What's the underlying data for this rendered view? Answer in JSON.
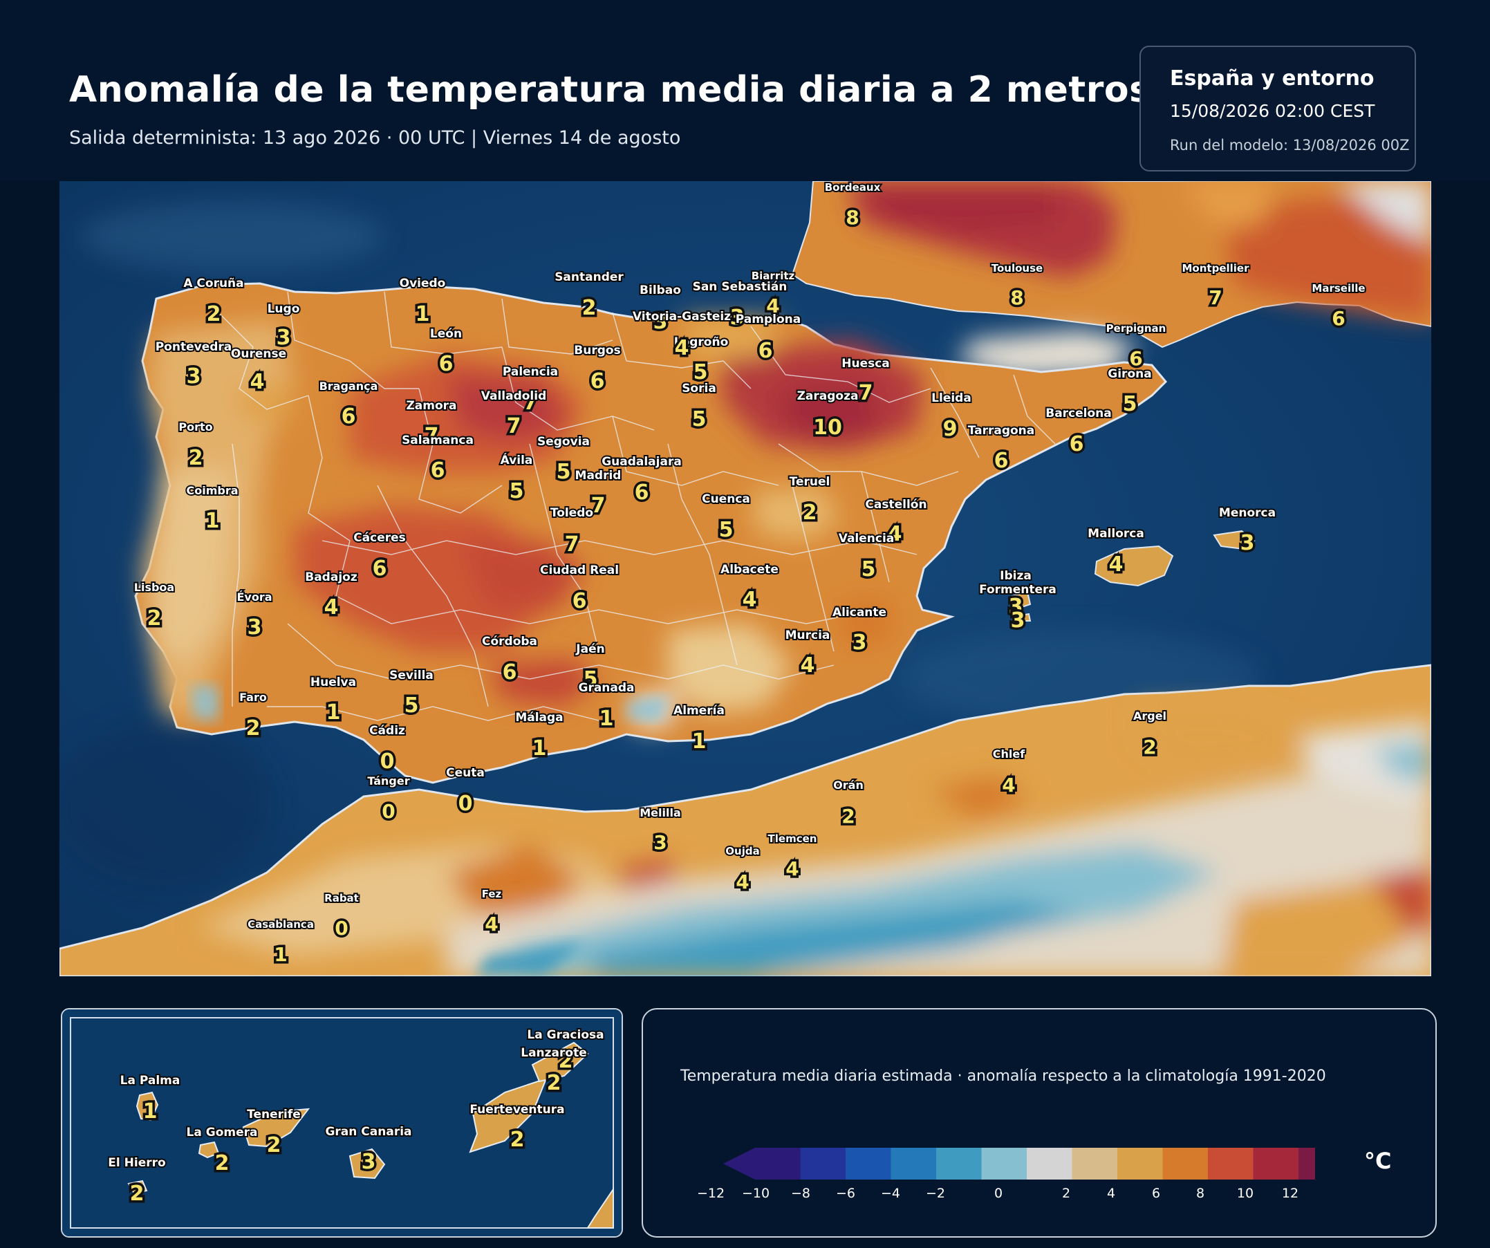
{
  "header": {
    "title": "Anomalía de la temperatura media diaria a 2 metros",
    "subtitle": "Salida determinista: 13 ago 2026 · 00 UTC  |  Viernes 14 de agosto"
  },
  "info_box": {
    "region": "España y entorno",
    "valid_time": "15/08/2026  02:00 CEST",
    "model_run": "Run del modelo: 13/08/2026 00Z"
  },
  "map": {
    "places": [
      {
        "id": "bordeaux",
        "name": "Bordeaux",
        "value": "8"
      },
      {
        "id": "toulouse",
        "name": "Toulouse",
        "value": "8"
      },
      {
        "id": "montpellier",
        "name": "Montpellier",
        "value": "7"
      },
      {
        "id": "marseille",
        "name": "Marseille",
        "value": "6"
      },
      {
        "id": "biarritz",
        "name": "Biarritz",
        "value": "4"
      },
      {
        "id": "perpignan",
        "name": "Perpignan",
        "value": "6"
      },
      {
        "id": "a-coruna",
        "name": "A Coruña",
        "value": "2"
      },
      {
        "id": "lugo",
        "name": "Lugo",
        "value": "3"
      },
      {
        "id": "oviedo",
        "name": "Oviedo",
        "value": "1"
      },
      {
        "id": "santander",
        "name": "Santander",
        "value": "2"
      },
      {
        "id": "bilbao",
        "name": "Bilbao",
        "value": "3"
      },
      {
        "id": "san-sebastian",
        "name": "San Sebastián",
        "value": "3"
      },
      {
        "id": "vitoria",
        "name": "Vitoria-Gasteiz",
        "value": ""
      },
      {
        "id": "pamplona",
        "name": "Pamplona",
        "value": "6"
      },
      {
        "id": "pontevedra",
        "name": "Pontevedra",
        "value": "3"
      },
      {
        "id": "ourense",
        "name": "Ourense",
        "value": "4"
      },
      {
        "id": "leon",
        "name": "León",
        "value": "6"
      },
      {
        "id": "logrono",
        "name": "Logroño",
        "value": "4"
      },
      {
        "id": "burgos",
        "name": "Burgos",
        "value": "6"
      },
      {
        "id": "palencia",
        "name": "Palencia",
        "value": "7"
      },
      {
        "id": "huesca",
        "name": "Huesca",
        "value": "7"
      },
      {
        "id": "soria",
        "name": "Soria",
        "value": "5"
      },
      {
        "id": "soria-b",
        "name": "",
        "value": "5"
      },
      {
        "id": "girona",
        "name": "Girona",
        "value": "5"
      },
      {
        "id": "braganca",
        "name": "Bragança",
        "value": "6"
      },
      {
        "id": "zamora",
        "name": "Zamora",
        "value": "7"
      },
      {
        "id": "valladolid",
        "name": "Valladolid",
        "value": "7"
      },
      {
        "id": "zaragoza",
        "name": "Zaragoza",
        "value": "10"
      },
      {
        "id": "lleida",
        "name": "Lleida",
        "value": "9"
      },
      {
        "id": "barcelona",
        "name": "Barcelona",
        "value": "6"
      },
      {
        "id": "tarragona",
        "name": "Tarragona",
        "value": "6"
      },
      {
        "id": "porto",
        "name": "Porto",
        "value": "2"
      },
      {
        "id": "salamanca",
        "name": "Salamanca",
        "value": "6"
      },
      {
        "id": "segovia",
        "name": "Segovia",
        "value": "5"
      },
      {
        "id": "avila",
        "name": "Ávila",
        "value": "5"
      },
      {
        "id": "guadalajara",
        "name": "Guadalajara",
        "value": "6"
      },
      {
        "id": "madrid",
        "name": "Madrid",
        "value": "7"
      },
      {
        "id": "teruel",
        "name": "Teruel",
        "value": "2"
      },
      {
        "id": "coimbra",
        "name": "Coimbra",
        "value": "1"
      },
      {
        "id": "cuenca",
        "name": "Cuenca",
        "value": "5"
      },
      {
        "id": "castellon",
        "name": "Castellón",
        "value": "4"
      },
      {
        "id": "toledo",
        "name": "Toledo",
        "value": "7"
      },
      {
        "id": "caceres",
        "name": "Cáceres",
        "value": "6"
      },
      {
        "id": "valencia",
        "name": "Valencia",
        "value": "5"
      },
      {
        "id": "mallorca",
        "name": "Mallorca",
        "value": "4"
      },
      {
        "id": "menorca",
        "name": "Menorca",
        "value": "3"
      },
      {
        "id": "badajoz",
        "name": "Badajoz",
        "value": "4"
      },
      {
        "id": "ciudad-real",
        "name": "Ciudad Real",
        "value": "6"
      },
      {
        "id": "albacete",
        "name": "Albacete",
        "value": "4"
      },
      {
        "id": "lisboa",
        "name": "Lisboa",
        "value": "2"
      },
      {
        "id": "evora",
        "name": "Évora",
        "value": "3"
      },
      {
        "id": "ibiza",
        "name": "Ibiza",
        "value": "3"
      },
      {
        "id": "formentera",
        "name": "Formentera",
        "value": "3"
      },
      {
        "id": "alicante",
        "name": "Alicante",
        "value": "3"
      },
      {
        "id": "murcia",
        "name": "Murcia",
        "value": "4"
      },
      {
        "id": "cordoba",
        "name": "Córdoba",
        "value": "6"
      },
      {
        "id": "jaen",
        "name": "Jaén",
        "value": "5"
      },
      {
        "id": "huelva",
        "name": "Huelva",
        "value": "1"
      },
      {
        "id": "sevilla",
        "name": "Sevilla",
        "value": "5"
      },
      {
        "id": "granada",
        "name": "Granada",
        "value": "1"
      },
      {
        "id": "faro",
        "name": "Faro",
        "value": "2"
      },
      {
        "id": "almeria",
        "name": "Almería",
        "value": "1"
      },
      {
        "id": "malaga",
        "name": "Málaga",
        "value": "1"
      },
      {
        "id": "cadiz",
        "name": "Cádiz",
        "value": "0"
      },
      {
        "id": "argel",
        "name": "Argel",
        "value": "2"
      },
      {
        "id": "chlef",
        "name": "Chlef",
        "value": "4"
      },
      {
        "id": "tanger",
        "name": "Tánger",
        "value": "0"
      },
      {
        "id": "ceuta",
        "name": "Ceuta",
        "value": "0"
      },
      {
        "id": "oran",
        "name": "Orán",
        "value": "2"
      },
      {
        "id": "melilla",
        "name": "Melilla",
        "value": "3"
      },
      {
        "id": "tlemcen",
        "name": "Tlemcen",
        "value": "4"
      },
      {
        "id": "oujda",
        "name": "Oujda",
        "value": "4"
      },
      {
        "id": "fez",
        "name": "Fez",
        "value": "4"
      },
      {
        "id": "rabat",
        "name": "Rabat",
        "value": "0"
      },
      {
        "id": "casablanca",
        "name": "Casablanca",
        "value": "1"
      }
    ]
  },
  "inset": {
    "places": [
      {
        "id": "la-graciosa",
        "name": "La Graciosa",
        "value": "2"
      },
      {
        "id": "lanzarote",
        "name": "Lanzarote",
        "value": "2"
      },
      {
        "id": "la-palma",
        "name": "La Palma",
        "value": "1"
      },
      {
        "id": "tenerife",
        "name": "Tenerife",
        "value": "2"
      },
      {
        "id": "fuerteventura",
        "name": "Fuerteventura",
        "value": "2"
      },
      {
        "id": "la-gomera",
        "name": "La Gomera",
        "value": "2"
      },
      {
        "id": "gran-canaria",
        "name": "Gran Canaria",
        "value": "3"
      },
      {
        "id": "el-hierro",
        "name": "El Hierro",
        "value": "2"
      }
    ]
  },
  "legend": {
    "title": "Temperatura media diaria estimada · anomalía respecto a la climatología 1991-2020",
    "unit": "°C",
    "ticks": [
      "−12",
      "−10",
      "−8",
      "−6",
      "−4",
      "−2",
      "0",
      "2",
      "4",
      "6",
      "8",
      "10",
      "12"
    ],
    "colors": [
      "#2b1a78",
      "#22339a",
      "#1a55b0",
      "#2479b8",
      "#3f9cc0",
      "#86bfd0",
      "#d4d4d4",
      "#d7bb8a",
      "#d9a24a",
      "#d67a2b",
      "#c94c34",
      "#a5273a",
      "#7b1a45"
    ]
  }
}
